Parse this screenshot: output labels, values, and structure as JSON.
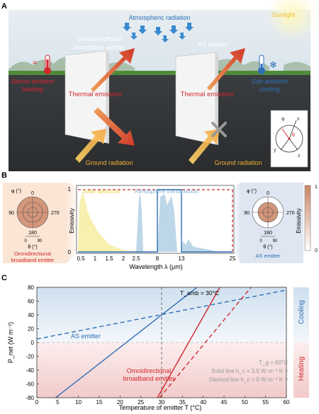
{
  "panelA": {
    "letter": "A",
    "atmospheric_radiation": "Atmospheric radiation",
    "sunlight": "Sunlight",
    "omni_title_1": "Omnidirectional",
    "omni_title_2": "broadband emitter",
    "as_title": "AS emitter",
    "thermal_emission": "Thermal emission",
    "ground_radiation": "Ground radiation",
    "above_ambient_1": "Above-ambient",
    "above_ambient_2": "heating",
    "sub_ambient_1": "Sub-ambient",
    "sub_ambient_2": "cooling",
    "coord_labels": [
      "φ",
      "x",
      "θ",
      "y",
      "z"
    ]
  },
  "panelB": {
    "letter": "B",
    "solar_spectrum": "Solar spectrum",
    "atm_transmission": "Atmosphere transmission",
    "emissivity": "Emissivity",
    "xlabel": "Wavelength λ (μm)",
    "xticks": [
      "0.5",
      "1",
      "1.5",
      "2",
      "2.5",
      "8",
      "13",
      "25"
    ],
    "yticks": [
      "0",
      "1"
    ],
    "polar_phi": "φ (°)",
    "polar_theta": "θ (°)",
    "polar_angles": [
      "0",
      "90",
      "180",
      "270"
    ],
    "polar_theta_ticks": [
      "0",
      "90"
    ],
    "omni_label_1": "Omnidirectional",
    "omni_label_2": "broadband emitter",
    "as_label": "AS emitter",
    "colorbar_label": "Emissivity",
    "colorbar_ticks": [
      "1",
      "0"
    ],
    "colors": {
      "omni": "#d4967a",
      "as": "#d4967a",
      "ring": "#ffffff"
    }
  },
  "panelC": {
    "letter": "C",
    "chart_data": {
      "type": "line",
      "xlabel": "Temperature of emitter T (°C)",
      "ylabel": "P_net (W m⁻²)",
      "xlim": [
        0,
        60
      ],
      "ylim": [
        -80,
        80
      ],
      "xticks": [
        0,
        5,
        10,
        15,
        20,
        25,
        30,
        35,
        40,
        45,
        50,
        55,
        60
      ],
      "yticks": [
        -80,
        -60,
        -40,
        -20,
        0,
        20,
        40,
        60,
        80
      ],
      "series": [
        {
          "name": "AS emitter",
          "color": "#2e6db4",
          "dashed": false,
          "points": [
            [
              4.5,
              -80
            ],
            [
              38.5,
              80
            ]
          ]
        },
        {
          "name": "AS emitter",
          "color": "#2e6db4",
          "dashed": true,
          "points": [
            [
              0,
              5
            ],
            [
              60,
              76
            ]
          ]
        },
        {
          "name": "Omnidirectional broadband emitter",
          "color": "#d1262e",
          "dashed": false,
          "points": [
            [
              29,
              -80
            ],
            [
              44,
              80
            ]
          ]
        },
        {
          "name": "Omnidirectional broadband emitter",
          "color": "#d1262e",
          "dashed": true,
          "points": [
            [
              29.5,
              -80
            ],
            [
              51.5,
              80
            ]
          ]
        }
      ],
      "vline_x": 30
    },
    "tamb_label": "T_amb = 30°C",
    "as_emitter": "AS emitter",
    "omni_1": "Omnidirectional",
    "omni_2": "broadband emitter",
    "tg_label": "T_g = 60°C",
    "solid_line": "Solid line h_c = 3.5 W m⁻² K⁻¹",
    "dashed_line": "Dashed line h_c = 0 W m⁻² K⁻¹",
    "cooling": "Cooling",
    "heating": "Heating"
  }
}
